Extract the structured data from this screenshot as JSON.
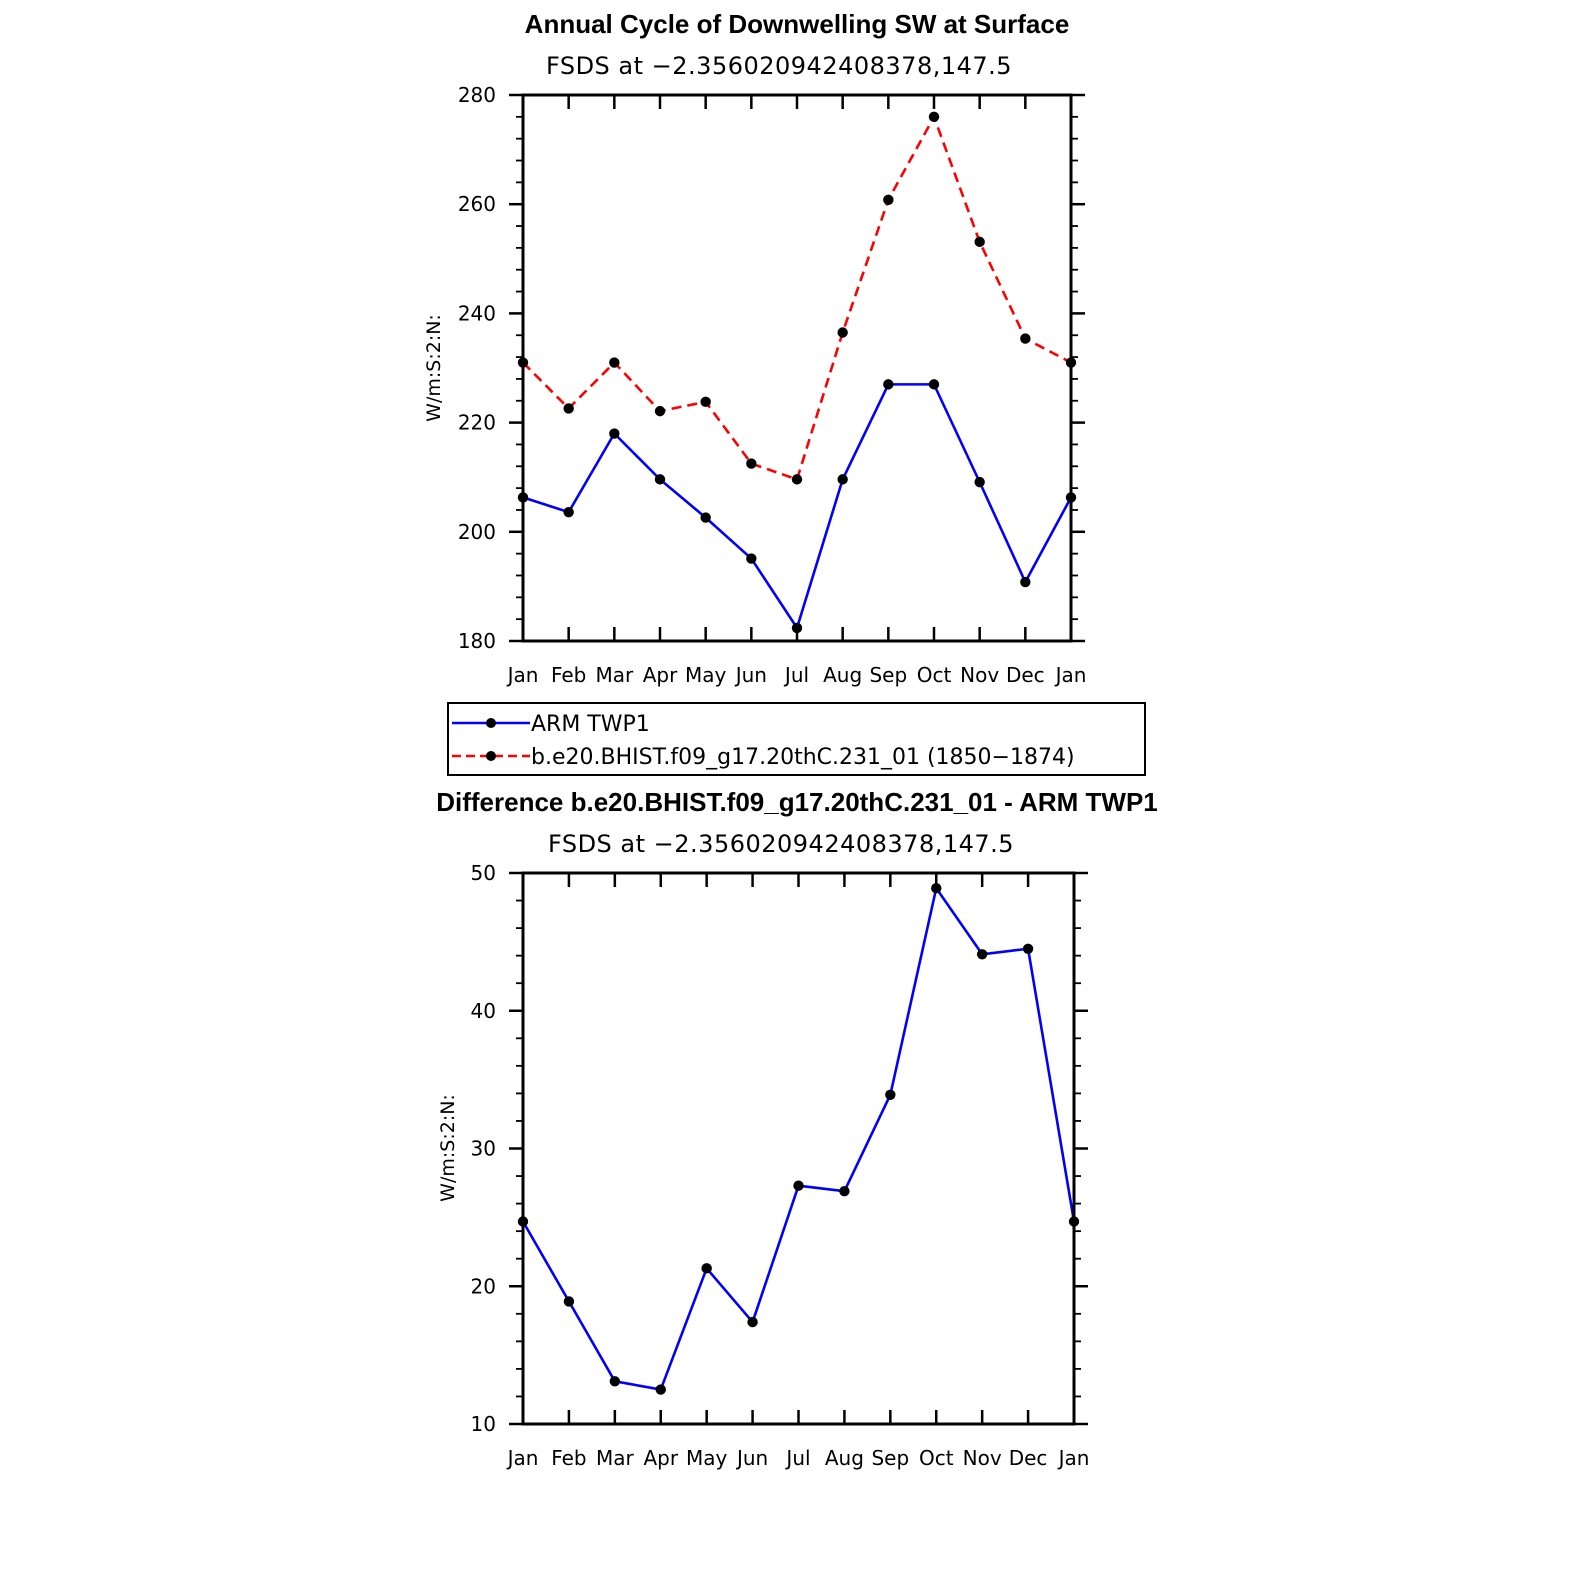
{
  "chart_data": [
    {
      "type": "line",
      "title": "Annual Cycle of Downwelling SW at Surface",
      "subtitle": "FSDS at −2.356020942408378,147.5",
      "xlabel": "",
      "ylabel": "W/m:S:2:N:",
      "categories": [
        "Jan",
        "Feb",
        "Mar",
        "Apr",
        "May",
        "Jun",
        "Jul",
        "Aug",
        "Sep",
        "Oct",
        "Nov",
        "Dec",
        "Jan"
      ],
      "ylim": [
        180,
        280
      ],
      "yticks": [
        180,
        200,
        220,
        240,
        260,
        280
      ],
      "grid": false,
      "legend": "below",
      "series": [
        {
          "name": "ARM  TWP1",
          "color": "#0000ff",
          "dash": "solid",
          "values": [
            206.3,
            203.6,
            218.0,
            209.6,
            202.6,
            195.1,
            182.4,
            209.6,
            227.0,
            227.0,
            209.1,
            190.8,
            206.3
          ]
        },
        {
          "name": "b.e20.BHIST.f09_g17.20thC.231_01 (1850−1874)",
          "color": "#ff0000",
          "dash": "dashed",
          "values": [
            231.0,
            222.6,
            231.0,
            222.1,
            223.8,
            212.5,
            209.6,
            236.5,
            260.8,
            276.0,
            253.1,
            235.4,
            231.0
          ]
        }
      ]
    },
    {
      "type": "line",
      "title": "Difference b.e20.BHIST.f09_g17.20thC.231_01 - ARM TWP1",
      "subtitle": "FSDS at −2.356020942408378,147.5",
      "xlabel": "",
      "ylabel": "W/m:S:2:N:",
      "categories": [
        "Jan",
        "Feb",
        "Mar",
        "Apr",
        "May",
        "Jun",
        "Jul",
        "Aug",
        "Sep",
        "Oct",
        "Nov",
        "Dec",
        "Jan"
      ],
      "ylim": [
        10,
        50
      ],
      "yticks": [
        10,
        20,
        30,
        40,
        50
      ],
      "grid": false,
      "series": [
        {
          "color": "#0000ff",
          "dash": "solid",
          "values": [
            24.7,
            18.9,
            13.1,
            12.5,
            21.3,
            17.4,
            27.3,
            26.9,
            33.9,
            48.9,
            44.1,
            44.5,
            24.7
          ]
        }
      ]
    }
  ]
}
